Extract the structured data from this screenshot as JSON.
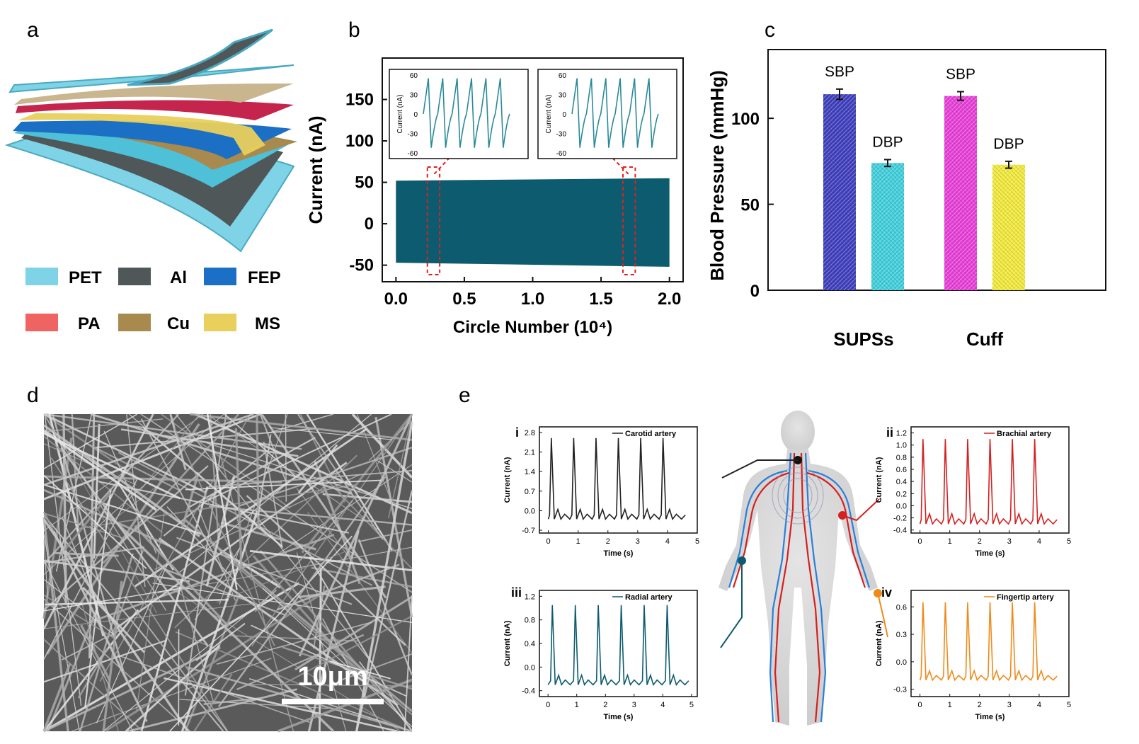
{
  "panels": {
    "a": "a",
    "b": "b",
    "c": "c",
    "d": "d",
    "e": "e"
  },
  "legend": {
    "pet": {
      "label": "PET",
      "color": "#7fd3e6"
    },
    "al": {
      "label": "Al",
      "color": "#505759"
    },
    "fep": {
      "label": "FEP",
      "color": "#1b6fc4"
    },
    "pa": {
      "label": "PA",
      "color": "#f06363"
    },
    "cu": {
      "label": "Cu",
      "color": "#a88a4e"
    },
    "ms": {
      "label": "MS",
      "color": "#e9cf5c"
    }
  },
  "scale_bar": {
    "label": "10μm"
  },
  "roman": {
    "i": "i",
    "ii": "ii",
    "iii": "iii",
    "iv": "iv"
  },
  "chart_data": [
    {
      "id": "b-main",
      "type": "area",
      "xlabel": "Circle Number (10⁴)",
      "ylabel": "Current (nA)",
      "xlim": [
        -0.1,
        2.1
      ],
      "ylim": [
        -70,
        200
      ],
      "xticks": [
        "0.0",
        "0.5",
        "1.0",
        "1.5",
        "2.0"
      ],
      "yticks": [
        "-50",
        "0",
        "50",
        "100",
        "150"
      ],
      "x": [
        0,
        2.0
      ],
      "upper": [
        52,
        55
      ],
      "lower": [
        -47,
        -52
      ],
      "color": "#0d5b6e"
    },
    {
      "id": "b-inset",
      "type": "line",
      "ylabel": "Current (nA)",
      "ylim": [
        -60,
        60
      ],
      "yticks": [
        "-60",
        "-30",
        "0",
        "30",
        "60"
      ],
      "peaks": 6,
      "peak_value": 55,
      "trough_value": -52,
      "color": "#2a8a9a"
    },
    {
      "id": "c-bar",
      "type": "bar",
      "ylabel": "Blood Pressure (mmHg)",
      "ylim": [
        0,
        140
      ],
      "yticks": [
        "0",
        "50",
        "100"
      ],
      "groups": [
        "SUPSs",
        "Cuff"
      ],
      "bars": [
        {
          "group": "SUPSs",
          "label": "SBP",
          "value": 114,
          "err": 3,
          "color": "#3f3fbf"
        },
        {
          "group": "SUPSs",
          "label": "DBP",
          "value": 74,
          "err": 2,
          "color": "#3fd0dc"
        },
        {
          "group": "Cuff",
          "label": "SBP",
          "value": 113,
          "err": 2.5,
          "color": "#e83fd8"
        },
        {
          "group": "Cuff",
          "label": "DBP",
          "value": 73,
          "err": 2,
          "color": "#f2ea3a"
        }
      ]
    },
    {
      "id": "e-i",
      "type": "line",
      "legend": "Carotid artery",
      "color": "#222222",
      "xlabel": "Time (s)",
      "ylabel": "Current (nA)",
      "xlim": [
        -0.3,
        5
      ],
      "ylim": [
        -0.8,
        3.0
      ],
      "xticks": [
        "0",
        "1",
        "2",
        "3",
        "4",
        "5"
      ],
      "yticks": [
        "-0.7",
        "0.0",
        "0.7",
        "1.4",
        "2.1",
        "2.8"
      ],
      "peaks": [
        0.1,
        0.85,
        1.6,
        2.35,
        3.1,
        3.85
      ],
      "peak_value": 2.6,
      "baseline": -0.3
    },
    {
      "id": "e-ii",
      "type": "line",
      "legend": "Brachial artery",
      "color": "#d42020",
      "xlabel": "Time (s)",
      "ylabel": "Current (nA)",
      "xlim": [
        -0.3,
        5
      ],
      "ylim": [
        -0.45,
        1.3
      ],
      "xticks": [
        "0",
        "1",
        "2",
        "3",
        "4",
        "5"
      ],
      "yticks": [
        "-0.4",
        "-0.2",
        "0.0",
        "0.2",
        "0.4",
        "0.6",
        "0.8",
        "1.0",
        "1.2"
      ],
      "peaks": [
        0.1,
        0.85,
        1.6,
        2.35,
        3.1,
        3.85
      ],
      "peak_value": 1.1,
      "baseline": -0.3
    },
    {
      "id": "e-iii",
      "type": "line",
      "legend": "Radial artery",
      "color": "#0d5b6e",
      "xlabel": "Time (s)",
      "ylabel": "Current (nA)",
      "xlim": [
        -0.3,
        5.2
      ],
      "ylim": [
        -0.5,
        1.3
      ],
      "xticks": [
        "0",
        "1",
        "2",
        "3",
        "4",
        "5"
      ],
      "yticks": [
        "-0.4",
        "0.0",
        "0.4",
        "0.8",
        "1.2"
      ],
      "peaks": [
        0.15,
        0.95,
        1.75,
        2.55,
        3.35,
        4.15
      ],
      "peak_value": 1.05,
      "baseline": -0.3
    },
    {
      "id": "e-iv",
      "type": "line",
      "legend": "Fingertip artery",
      "color": "#f08a1a",
      "xlabel": "Time (s)",
      "ylabel": "Current (nA)",
      "xlim": [
        -0.3,
        5
      ],
      "ylim": [
        -0.38,
        0.78
      ],
      "xticks": [
        "0",
        "1",
        "2",
        "3",
        "4",
        "5"
      ],
      "yticks": [
        "-0.3",
        "0.0",
        "0.3",
        "0.6"
      ],
      "peaks": [
        0.1,
        0.85,
        1.6,
        2.35,
        3.1,
        3.85
      ],
      "peak_value": 0.65,
      "baseline": -0.2
    }
  ]
}
